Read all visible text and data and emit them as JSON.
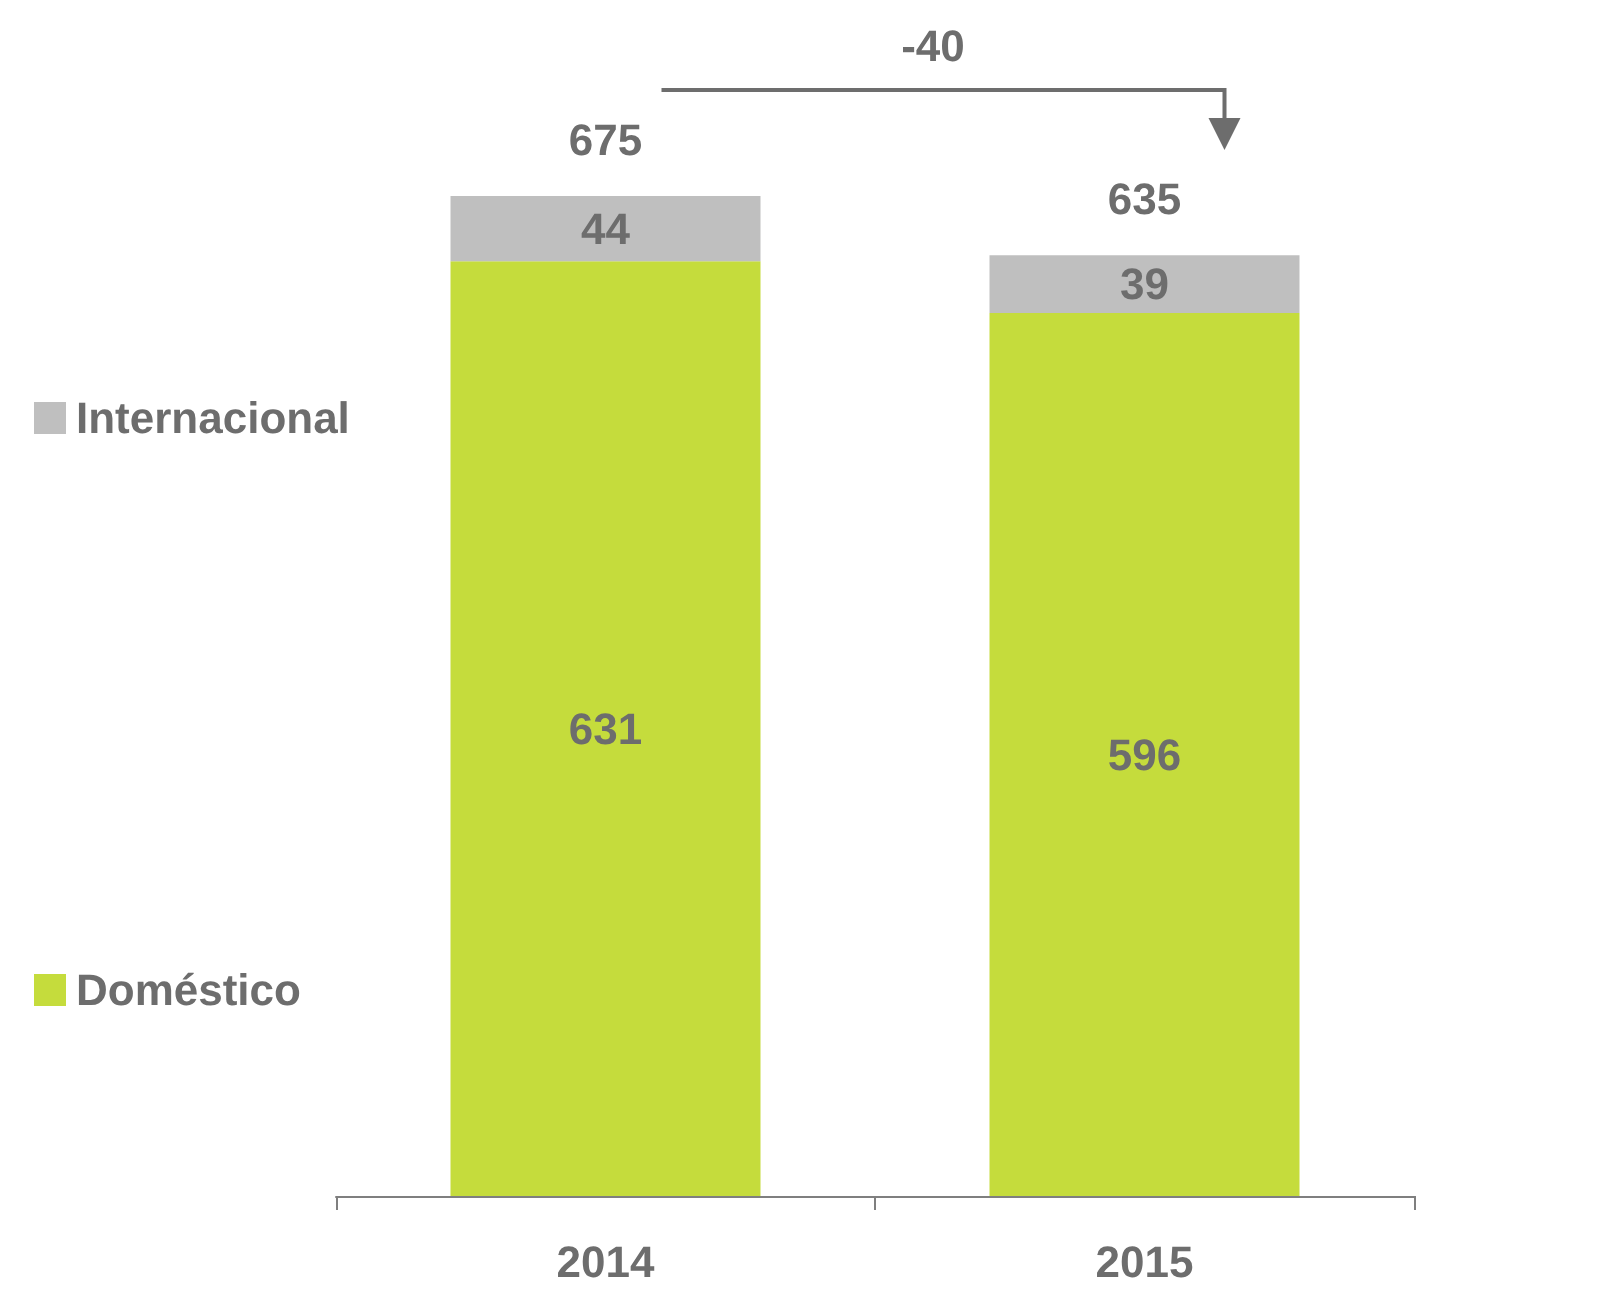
{
  "chart_data": {
    "type": "bar",
    "stacked": true,
    "categories": [
      "2014",
      "2015"
    ],
    "series": [
      {
        "name": "Doméstico",
        "color": "#c5dc3c",
        "values": [
          631,
          596
        ]
      },
      {
        "name": "Internacional",
        "color": "#bfbfbf",
        "values": [
          44,
          39
        ]
      }
    ],
    "data_labels": true,
    "totals": [
      "675",
      "635"
    ],
    "annotations": [
      "-40"
    ],
    "legend": "left"
  }
}
